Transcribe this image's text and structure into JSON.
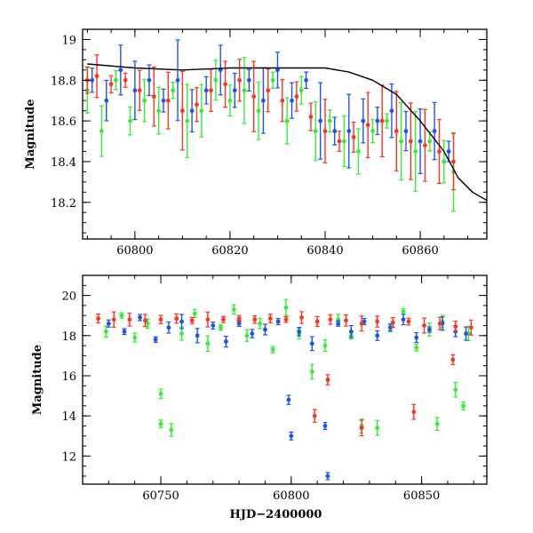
{
  "chart_data": [
    {
      "type": "scatter",
      "xlabel": "",
      "ylabel": "Magnitude",
      "xlim": [
        60789,
        60874
      ],
      "ylim": [
        19.05,
        18.02
      ],
      "y_inverted": true,
      "xticks": [
        60800,
        60820,
        60840,
        60860
      ],
      "yticks": [
        18.2,
        18.4,
        18.6,
        18.8,
        19
      ],
      "ytick_labels": [
        "18.2",
        "18.4",
        "18.6",
        "18.8",
        "19"
      ],
      "error_bars": true,
      "series": [
        {
          "color": "#33ee33",
          "x": [
            60790,
            60793,
            60796,
            60799,
            60802,
            60805,
            60808,
            60811,
            60814,
            60817,
            60820,
            60823,
            60826,
            60829,
            60832,
            60835,
            60838,
            60841,
            60844,
            60847,
            60850,
            60853,
            60856,
            60859,
            60862,
            60865,
            60867
          ],
          "y": [
            18.75,
            18.55,
            18.8,
            18.6,
            18.7,
            18.65,
            18.75,
            18.6,
            18.65,
            18.8,
            18.7,
            18.75,
            18.65,
            18.8,
            18.6,
            18.75,
            18.55,
            18.6,
            18.5,
            18.45,
            18.55,
            18.6,
            18.5,
            18.45,
            18.5,
            18.4,
            18.35
          ]
        },
        {
          "color": "#1a55ee",
          "x": [
            60791,
            60794,
            60797,
            60800,
            60803,
            60806,
            60809,
            60812,
            60815,
            60818,
            60821,
            60824,
            60827,
            60830,
            60833,
            60836,
            60839,
            60842,
            60845,
            60848,
            60851,
            60854,
            60857,
            60860,
            60863,
            60866
          ],
          "y": [
            18.8,
            18.7,
            18.85,
            18.75,
            18.8,
            18.7,
            18.8,
            18.65,
            18.75,
            18.85,
            18.75,
            18.8,
            18.7,
            18.85,
            18.7,
            18.8,
            18.6,
            18.55,
            18.55,
            18.6,
            18.6,
            18.65,
            18.55,
            18.5,
            18.55,
            18.45
          ]
        },
        {
          "color": "#ff3322",
          "x": [
            60790,
            60792,
            60795,
            60798,
            60801,
            60804,
            60807,
            60810,
            60813,
            60816,
            60819,
            60822,
            60825,
            60828,
            60831,
            60834,
            60837,
            60840,
            60843,
            60846,
            60849,
            60852,
            60855,
            60858,
            60861,
            60864,
            60867
          ],
          "y": [
            18.8,
            18.82,
            18.78,
            18.8,
            18.75,
            18.72,
            18.7,
            18.65,
            18.68,
            18.75,
            18.78,
            18.8,
            18.72,
            18.75,
            18.7,
            18.72,
            18.62,
            18.55,
            18.5,
            18.52,
            18.58,
            18.6,
            18.55,
            18.5,
            18.48,
            18.45,
            18.4
          ]
        }
      ],
      "curve": {
        "color": "#000000",
        "x": [
          60790,
          60800,
          60810,
          60820,
          60830,
          60840,
          60845,
          60850,
          60855,
          60860,
          60865,
          60868,
          60871,
          60874
        ],
        "y": [
          18.88,
          18.86,
          18.85,
          18.86,
          18.86,
          18.86,
          18.84,
          18.8,
          18.73,
          18.6,
          18.45,
          18.32,
          18.25,
          18.21
        ]
      }
    },
    {
      "type": "scatter",
      "xlabel": "HJD−2400000",
      "ylabel": "Magnitude",
      "xlim": [
        60720,
        60875
      ],
      "ylim": [
        21.0,
        10.6
      ],
      "y_inverted": true,
      "xticks": [
        60750,
        60800,
        60850
      ],
      "yticks": [
        12,
        14,
        16,
        18,
        20
      ],
      "ytick_labels": [
        "12",
        "14",
        "16",
        "18",
        "20"
      ],
      "error_bars": true,
      "series": [
        {
          "color": "#33ee33",
          "x": [
            60729,
            60735,
            60740,
            60745,
            60750,
            60750,
            60754,
            60758,
            60763,
            60768,
            60773,
            60778,
            60783,
            60788,
            60793,
            60798,
            60803,
            60808,
            60813,
            60818,
            60823,
            60827,
            60833,
            60838,
            60843,
            60848,
            60853,
            60856,
            60858,
            60863,
            60866,
            60868
          ],
          "y": [
            18.2,
            19.0,
            17.9,
            18.6,
            13.6,
            15.1,
            13.3,
            18.1,
            19.1,
            17.6,
            18.4,
            19.3,
            18.0,
            18.6,
            17.3,
            19.4,
            18.1,
            16.2,
            17.5,
            18.8,
            18.0,
            13.5,
            13.4,
            18.4,
            19.2,
            17.4,
            18.3,
            13.6,
            18.7,
            15.3,
            14.5,
            18.1
          ]
        },
        {
          "color": "#1a55ee",
          "x": [
            60730,
            60736,
            60742,
            60748,
            60753,
            60758,
            60764,
            60770,
            60775,
            60780,
            60785,
            60790,
            60795,
            60799,
            60800,
            60803,
            60808,
            60813,
            60814,
            60818,
            60823,
            60828,
            60833,
            60838,
            60843,
            60848,
            60853,
            60858,
            60863,
            60867
          ],
          "y": [
            18.6,
            18.2,
            18.9,
            17.8,
            18.4,
            18.7,
            18.0,
            18.5,
            17.7,
            18.6,
            18.1,
            18.3,
            18.7,
            14.8,
            13.0,
            18.2,
            17.6,
            13.5,
            11.0,
            18.6,
            18.2,
            18.7,
            18.0,
            18.4,
            18.8,
            17.9,
            18.3,
            18.6,
            18.2,
            18.1
          ]
        },
        {
          "color": "#ff3322",
          "x": [
            60726,
            60732,
            60738,
            60744,
            60750,
            60756,
            60762,
            60768,
            60774,
            60780,
            60786,
            60792,
            60798,
            60804,
            60810,
            60815,
            60821,
            60827,
            60833,
            60839,
            60845,
            60851,
            60857,
            60863,
            60869
          ],
          "y": [
            18.85,
            18.8,
            18.8,
            18.75,
            18.8,
            18.85,
            18.75,
            18.8,
            18.8,
            18.85,
            18.8,
            18.85,
            18.8,
            18.9,
            18.7,
            18.8,
            18.75,
            18.6,
            18.7,
            18.65,
            18.7,
            18.5,
            18.6,
            18.45,
            18.4
          ]
        },
        {
          "color": "#ff3322",
          "x": [
            60809,
            60814,
            60827,
            60847,
            60862
          ],
          "y": [
            14.0,
            15.8,
            13.4,
            14.2,
            16.8
          ]
        }
      ]
    }
  ]
}
